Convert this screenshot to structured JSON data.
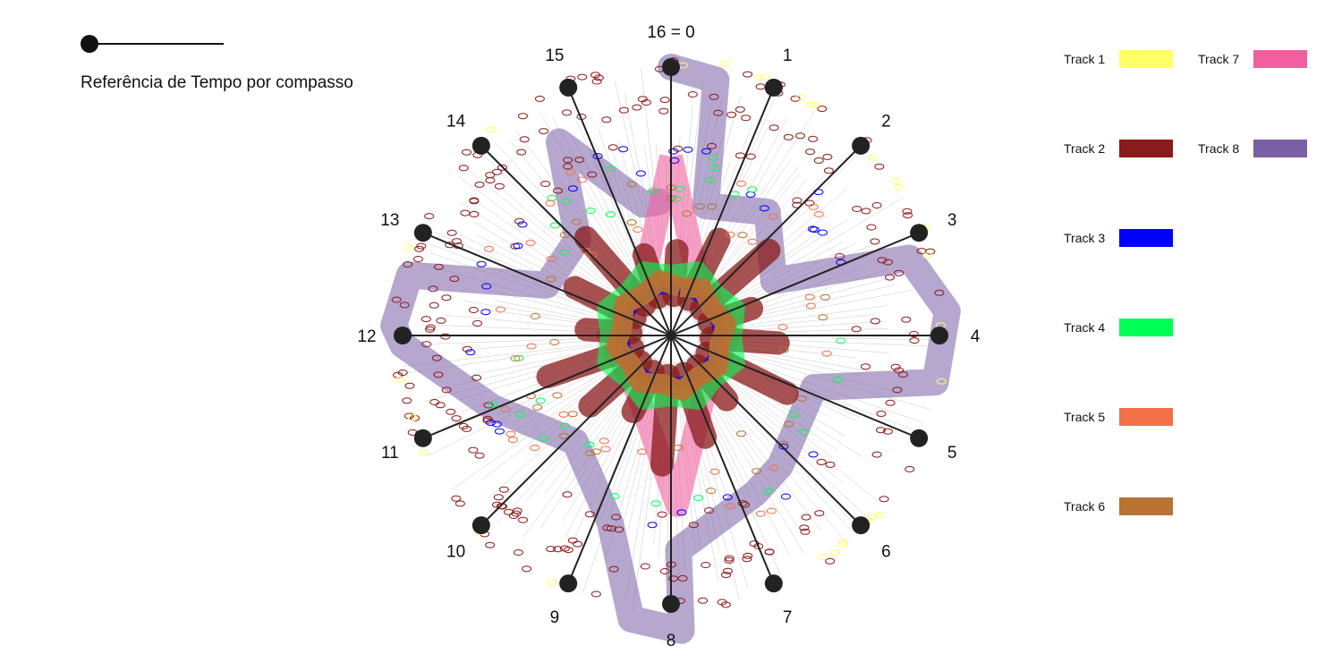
{
  "reference": {
    "label": "Referência de Tempo por compasso"
  },
  "axis_labels": [
    "16 = 0",
    "1",
    "2",
    "3",
    "4",
    "5",
    "6",
    "7",
    "8",
    "9",
    "10",
    "11",
    "12",
    "13",
    "14",
    "15"
  ],
  "legend": [
    {
      "label": "Track 1",
      "color": "#ffff66"
    },
    {
      "label": "Track 2",
      "color": "#8b1a1a"
    },
    {
      "label": "Track 3",
      "color": "#0000ff"
    },
    {
      "label": "Track 4",
      "color": "#00ff55"
    },
    {
      "label": "Track 5",
      "color": "#f07048"
    },
    {
      "label": "Track 6",
      "color": "#b87333"
    },
    {
      "label": "Track 7",
      "color": "#f060a0"
    },
    {
      "label": "Track 8",
      "color": "#7a5fa5"
    }
  ]
}
